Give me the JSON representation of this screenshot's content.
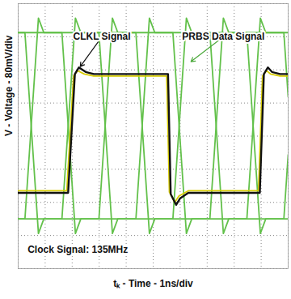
{
  "chart_data": {
    "type": "line",
    "xlabel": "tₖ - Time - 1ns/div",
    "ylabel": "V - Voltage - 80mV/div",
    "xlim": [
      0,
      10
    ],
    "xticks": [
      0,
      1,
      2,
      3,
      4,
      5,
      6,
      7,
      8,
      9,
      10
    ],
    "ylim": [
      -320,
      320
    ],
    "yticks": [
      -320,
      -240,
      -160,
      -80,
      0,
      80,
      160,
      240,
      320
    ],
    "grid": true,
    "tick_labels": false,
    "series": [
      {
        "color": "#63c14b",
        "x": [
          0,
          0.25,
          0.75,
          0.95,
          1.62,
          2.12,
          2.32,
          2.99,
          3.49,
          3.69,
          4.36,
          4.86,
          5.06,
          5.73,
          6.23,
          6.43,
          7.1,
          7.6,
          7.8,
          8.47,
          8.97,
          9.17,
          9.84,
          10
        ],
        "values": [
          250,
          250,
          -235,
          -200,
          -200,
          285,
          250,
          250,
          -235,
          -200,
          -200,
          285,
          250,
          250,
          -235,
          -200,
          -200,
          285,
          250,
          250,
          -235,
          -200,
          -200,
          -45
        ]
      },
      {
        "color": "#63c14b",
        "x": [
          0,
          0.25,
          0.75,
          0.95,
          1.62,
          2.12,
          2.32,
          2.99,
          3.49,
          3.69,
          4.36,
          4.86,
          5.06,
          5.73,
          6.23,
          6.43,
          7.1,
          7.6,
          7.8,
          8.47,
          8.97,
          9.17,
          9.84,
          10
        ],
        "values": [
          -200,
          -200,
          285,
          250,
          250,
          -235,
          -200,
          -200,
          285,
          250,
          250,
          -235,
          -200,
          -200,
          285,
          250,
          250,
          -235,
          -200,
          -200,
          285,
          250,
          250,
          95
        ]
      },
      {
        "color": "#63c14b",
        "x": [
          0,
          10
        ],
        "values": [
          250,
          250
        ]
      },
      {
        "color": "#63c14b",
        "x": [
          0,
          10
        ],
        "values": [
          -200,
          -200
        ]
      },
      {
        "color": "#d8cc00",
        "x": [
          0,
          1.8,
          2.05,
          2.2,
          2.45,
          2.8,
          5.5,
          5.6,
          5.8,
          5.95,
          6.3,
          8.9,
          9.05,
          9.2,
          9.35,
          9.7,
          10
        ],
        "values": [
          -132,
          -132,
          145,
          158,
          150,
          145,
          145,
          -135,
          -160,
          -145,
          -132,
          -132,
          145,
          158,
          150,
          145,
          145
        ]
      },
      {
        "color": "#111111",
        "x": [
          0,
          1.85,
          2.1,
          2.25,
          2.5,
          2.8,
          5.55,
          5.65,
          5.85,
          6.0,
          6.3,
          8.95,
          9.1,
          9.25,
          9.4,
          9.7,
          10
        ],
        "values": [
          -137,
          -137,
          150,
          166,
          155,
          150,
          150,
          -140,
          -166,
          -150,
          -137,
          -137,
          150,
          166,
          155,
          150,
          150
        ]
      }
    ],
    "annotations": [
      {
        "text": "CLKL Signal",
        "x": 3.1,
        "y": 240,
        "target_x": 2.3,
        "target_y": 168
      },
      {
        "text": "PRBS Data Signal",
        "x": 7.6,
        "y": 240,
        "target_x": 6.4,
        "target_y": 180
      },
      {
        "text": "Clock Signal: 135MHz",
        "x": 0.35,
        "y": -275
      }
    ]
  }
}
